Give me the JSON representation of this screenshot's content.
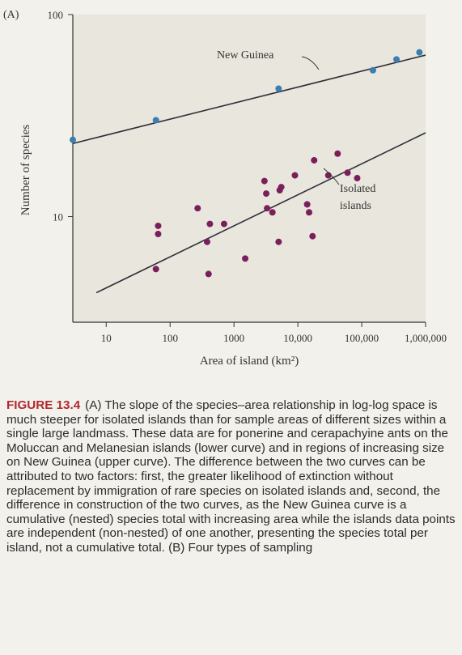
{
  "figure": {
    "panel_label": "(A)",
    "chart_data": {
      "type": "scatter",
      "xlabel": "Area of island (km²)",
      "ylabel": "Number of species",
      "x_scale": "log",
      "y_scale": "log",
      "xlim": [
        3,
        1000000
      ],
      "ylim": [
        3,
        100
      ],
      "x_ticks": [
        10,
        100,
        1000,
        10000,
        100000,
        1000000
      ],
      "x_tick_labels": [
        "10",
        "100",
        "1000",
        "10,000",
        "100,000",
        "1,000,000"
      ],
      "y_ticks": [
        10,
        100
      ],
      "y_tick_labels": [
        "10",
        "100"
      ],
      "grid": false,
      "series": [
        {
          "name": "New Guinea",
          "color": "#3a7fb0",
          "points": [
            [
              3,
              24
            ],
            [
              60,
              30
            ],
            [
              5000,
              43
            ],
            [
              150000,
              53
            ],
            [
              350000,
              60
            ],
            [
              800000,
              65
            ]
          ],
          "fit": [
            [
              3,
              23
            ],
            [
              1000000,
              63
            ]
          ]
        },
        {
          "name": "Isolated islands",
          "color": "#7a1f5c",
          "points": [
            [
              60,
              5.5
            ],
            [
              65,
              8.2
            ],
            [
              65,
              9
            ],
            [
              270,
              11
            ],
            [
              380,
              7.5
            ],
            [
              400,
              5.2
            ],
            [
              420,
              9.2
            ],
            [
              700,
              9.2
            ],
            [
              1500,
              6.2
            ],
            [
              3000,
              15
            ],
            [
              3200,
              13
            ],
            [
              3300,
              11
            ],
            [
              4000,
              10.5
            ],
            [
              5000,
              7.5
            ],
            [
              5200,
              13.5
            ],
            [
              5500,
              14
            ],
            [
              9000,
              16
            ],
            [
              14000,
              11.5
            ],
            [
              15000,
              10.5
            ],
            [
              17000,
              8
            ],
            [
              18000,
              19
            ],
            [
              30000,
              16
            ],
            [
              42000,
              20.5
            ],
            [
              60000,
              16.5
            ],
            [
              85000,
              15.5
            ]
          ],
          "fit": [
            [
              7,
              4.2
            ],
            [
              1000000,
              26
            ]
          ]
        }
      ]
    }
  },
  "caption": {
    "label": "FIGURE 13.4",
    "text": "(A) The slope of the species–area relationship in log-log space is much steeper for isolated islands than for sample areas of different sizes within a single large landmass. These data are for ponerine and cerapachyine ants on the Moluccan and Melanesian islands (lower curve) and in regions of increasing size on New Guinea (upper curve). The difference between the two curves can be attributed to two factors: first, the greater likelihood of extinction without replacement by immigration of rare species on isolated islands and, second, the difference in construction of the two curves, as the New Guinea curve is a cumulative (nested) species total with increasing area while the islands data points are independent (non-nested) of one another, presenting the species total per island, not a cumulative total. (B) Four types of sampling"
  }
}
